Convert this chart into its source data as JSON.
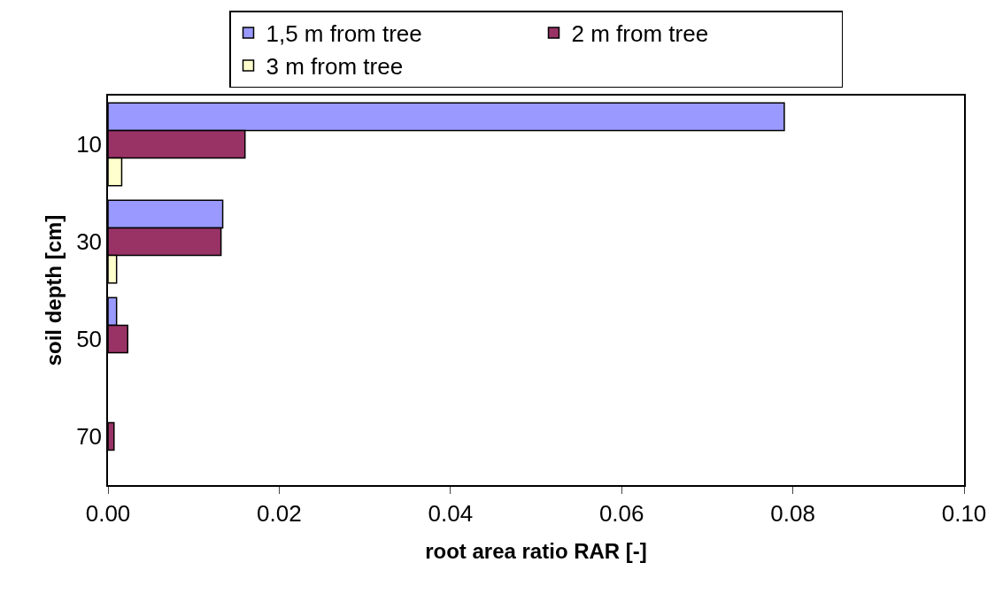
{
  "chart_data": {
    "type": "bar",
    "orientation": "horizontal",
    "xlabel": "root area ratio RAR [-]",
    "ylabel": "soil depth [cm]",
    "categories": [
      "10",
      "30",
      "50",
      "70"
    ],
    "series": [
      {
        "name": "1,5 m from tree",
        "color": "#9999ff",
        "values": [
          0.079,
          0.0134,
          0.001,
          null
        ]
      },
      {
        "name": "2 m from tree",
        "color": "#993366",
        "values": [
          0.016,
          0.0132,
          0.0023,
          0.0007
        ]
      },
      {
        "name": "3 m from tree",
        "color": "#ffffcc",
        "values": [
          0.0016,
          0.001,
          null,
          null
        ]
      }
    ],
    "xlim": [
      0,
      0.1
    ],
    "xticks": [
      {
        "value": 0,
        "label": "0.00"
      },
      {
        "value": 0.02,
        "label": "0.02"
      },
      {
        "value": 0.04,
        "label": "0.04"
      },
      {
        "value": 0.06,
        "label": "0.06"
      },
      {
        "value": 0.08,
        "label": "0.08"
      },
      {
        "value": 0.1,
        "label": "0.10"
      }
    ],
    "grid": false,
    "legend": "top"
  }
}
